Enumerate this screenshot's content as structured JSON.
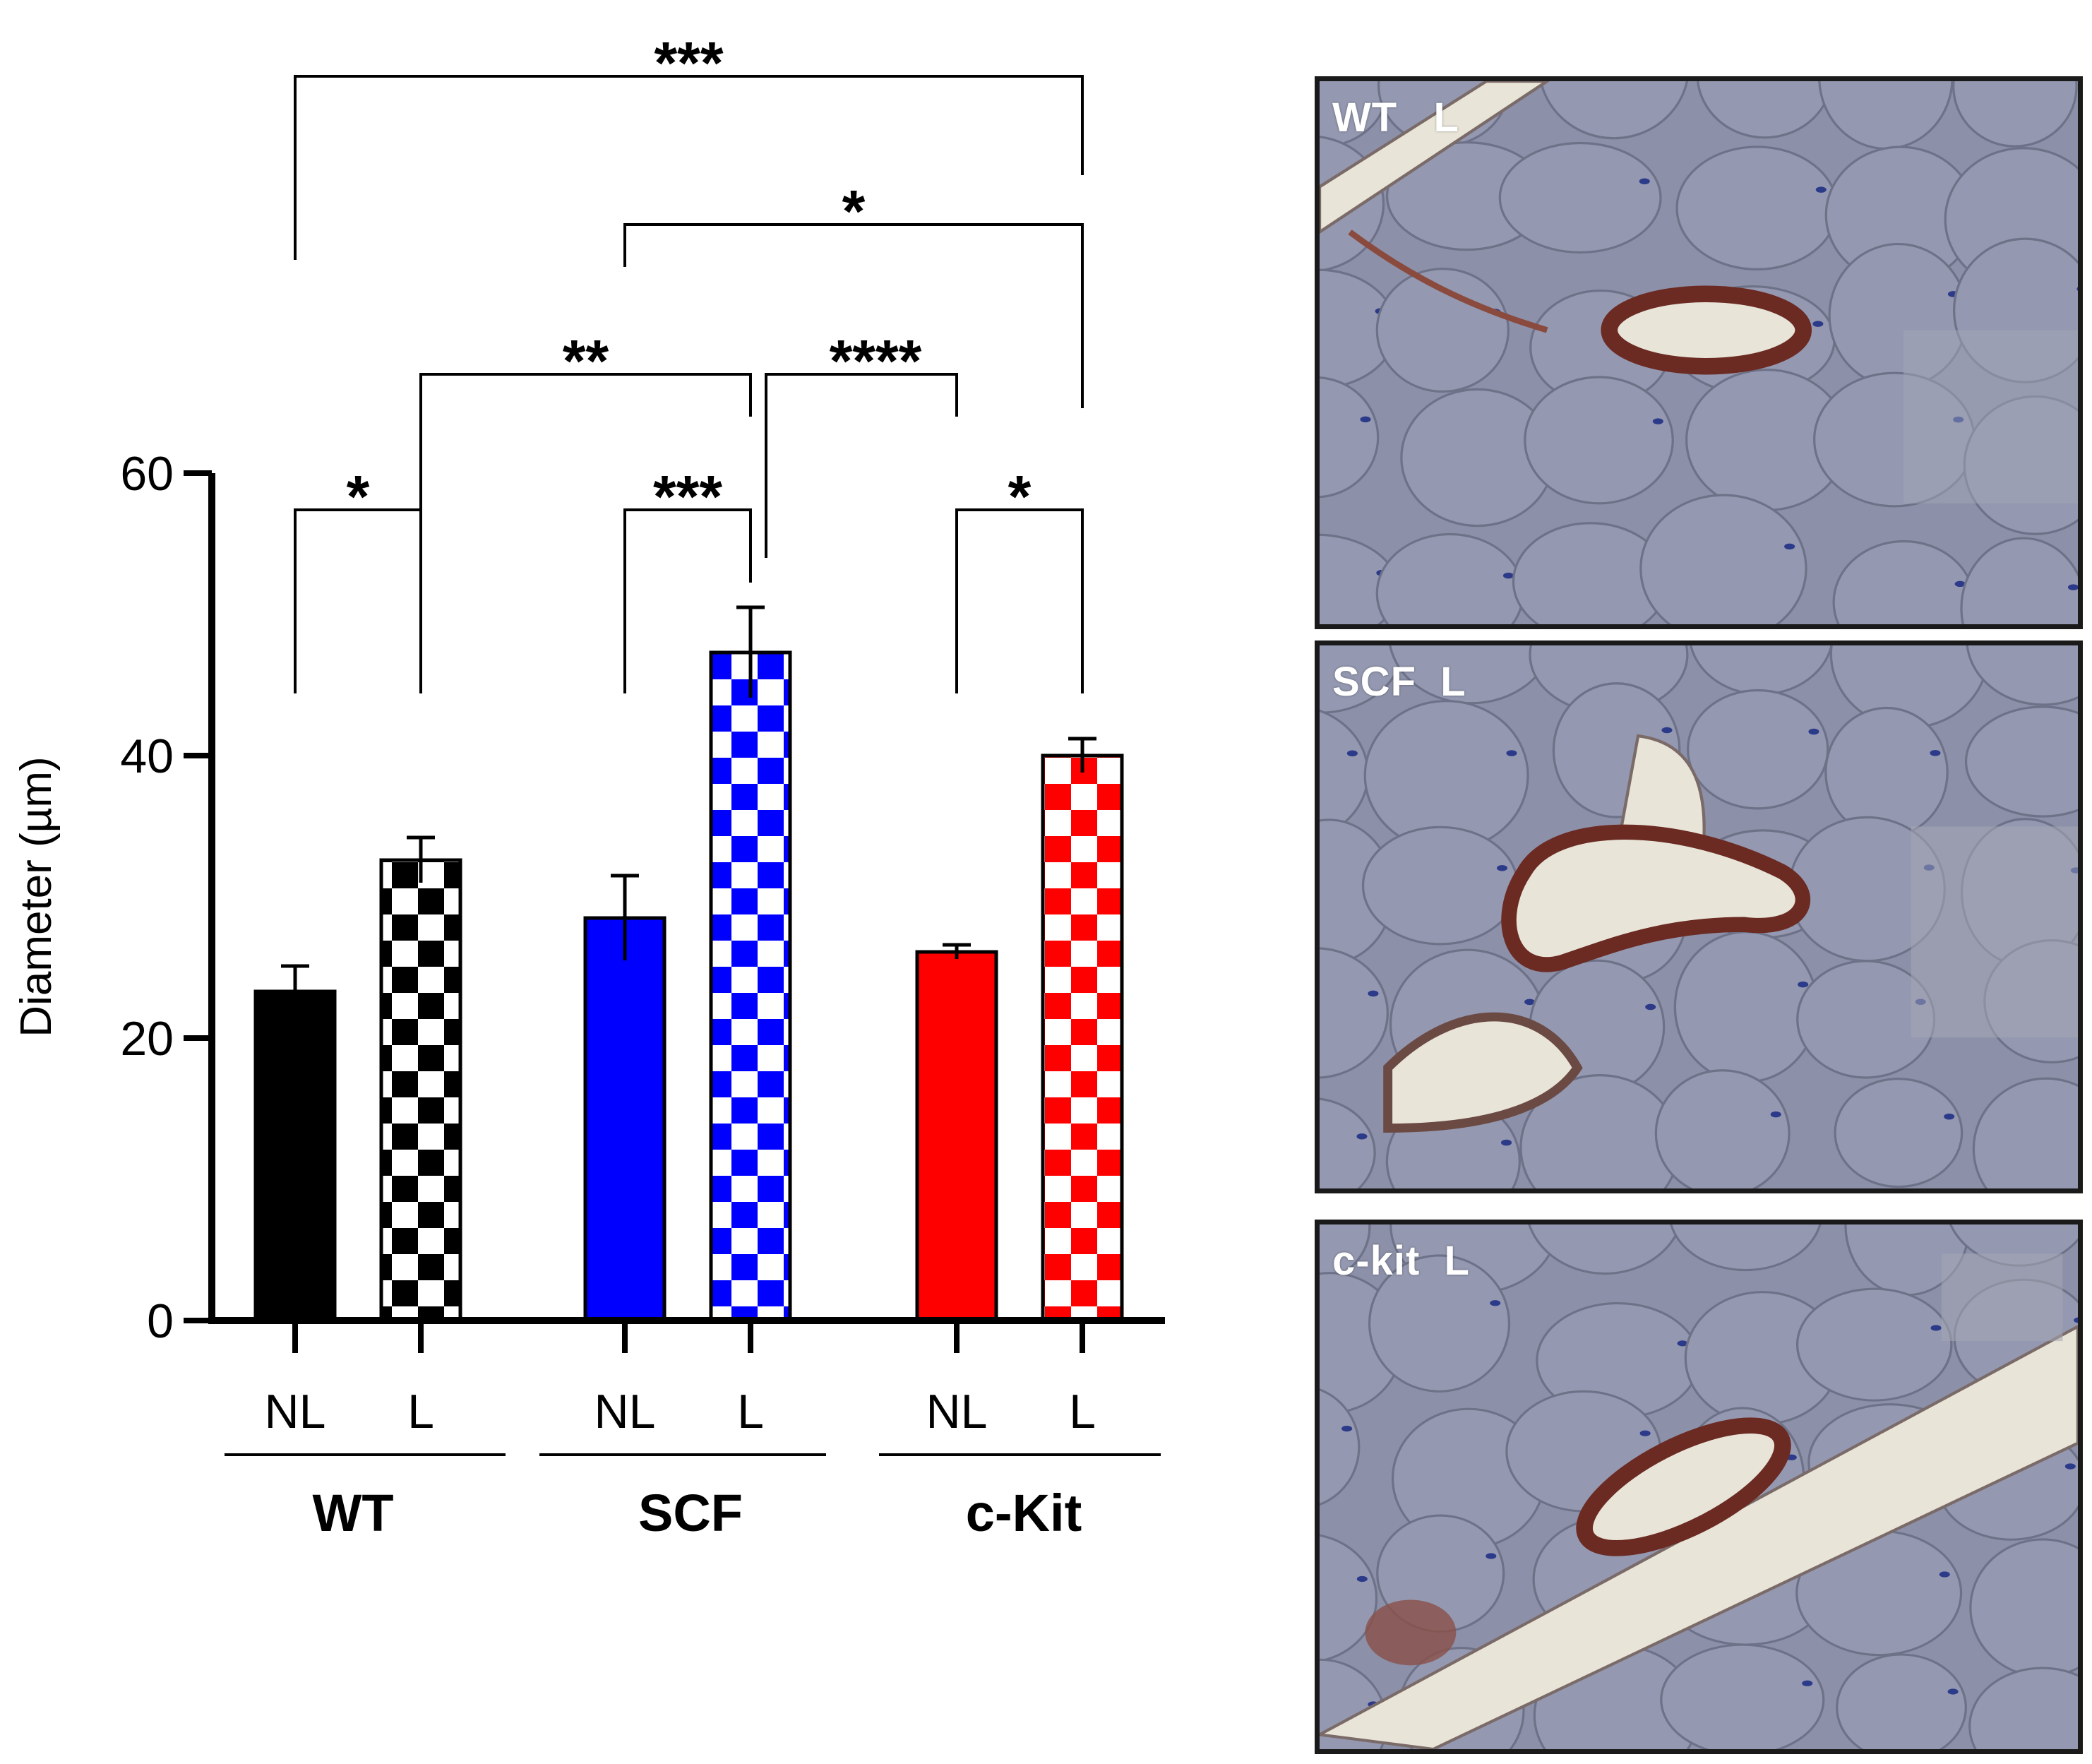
{
  "chart_data": {
    "type": "bar",
    "ylabel": "Diameter (µm)",
    "ylim": [
      0,
      60
    ],
    "yticks": [
      "0",
      "20",
      "40",
      "60"
    ],
    "groups": [
      {
        "name": "WT",
        "categories": [
          "NL",
          "L"
        ],
        "values": [
          23.3,
          32.6
        ],
        "errors": [
          1.8,
          1.6
        ],
        "color": "#000000"
      },
      {
        "name": "SCF",
        "categories": [
          "NL",
          "L"
        ],
        "values": [
          28.5,
          47.3
        ],
        "errors": [
          3.0,
          3.2
        ],
        "color": "#0000ff"
      },
      {
        "name": "c-Kit",
        "categories": [
          "NL",
          "L"
        ],
        "values": [
          26.1,
          40.0
        ],
        "errors": [
          0.5,
          1.2
        ],
        "color": "#ff0000"
      }
    ],
    "patterns": {
      "NL": "solid",
      "L": "checkerboard"
    },
    "significance": [
      {
        "from": "WT NL",
        "to": "WT L",
        "label": "*"
      },
      {
        "from": "SCF NL",
        "to": "SCF L",
        "label": "***"
      },
      {
        "from": "c-Kit NL",
        "to": "c-Kit L",
        "label": "*"
      },
      {
        "from": "WT L",
        "to": "SCF L",
        "label": "**"
      },
      {
        "from": "SCF L",
        "to": "c-Kit NL",
        "label": "****"
      },
      {
        "from": "SCF NL",
        "to": "c-Kit L",
        "label": "*"
      },
      {
        "from": "WT NL",
        "to": "c-Kit L",
        "label": "***"
      }
    ]
  },
  "micrographs": [
    {
      "label": "WT   L",
      "group": "WT"
    },
    {
      "label": "SCF  L",
      "group": "SCF"
    },
    {
      "label": "c-kit  L",
      "group": "c-Kit"
    }
  ],
  "colors": {
    "tissue": "#8c90a8",
    "fiber_edge": "#6e7288",
    "vessel": "#6b2a22",
    "lumen": "#e8e4d8"
  }
}
